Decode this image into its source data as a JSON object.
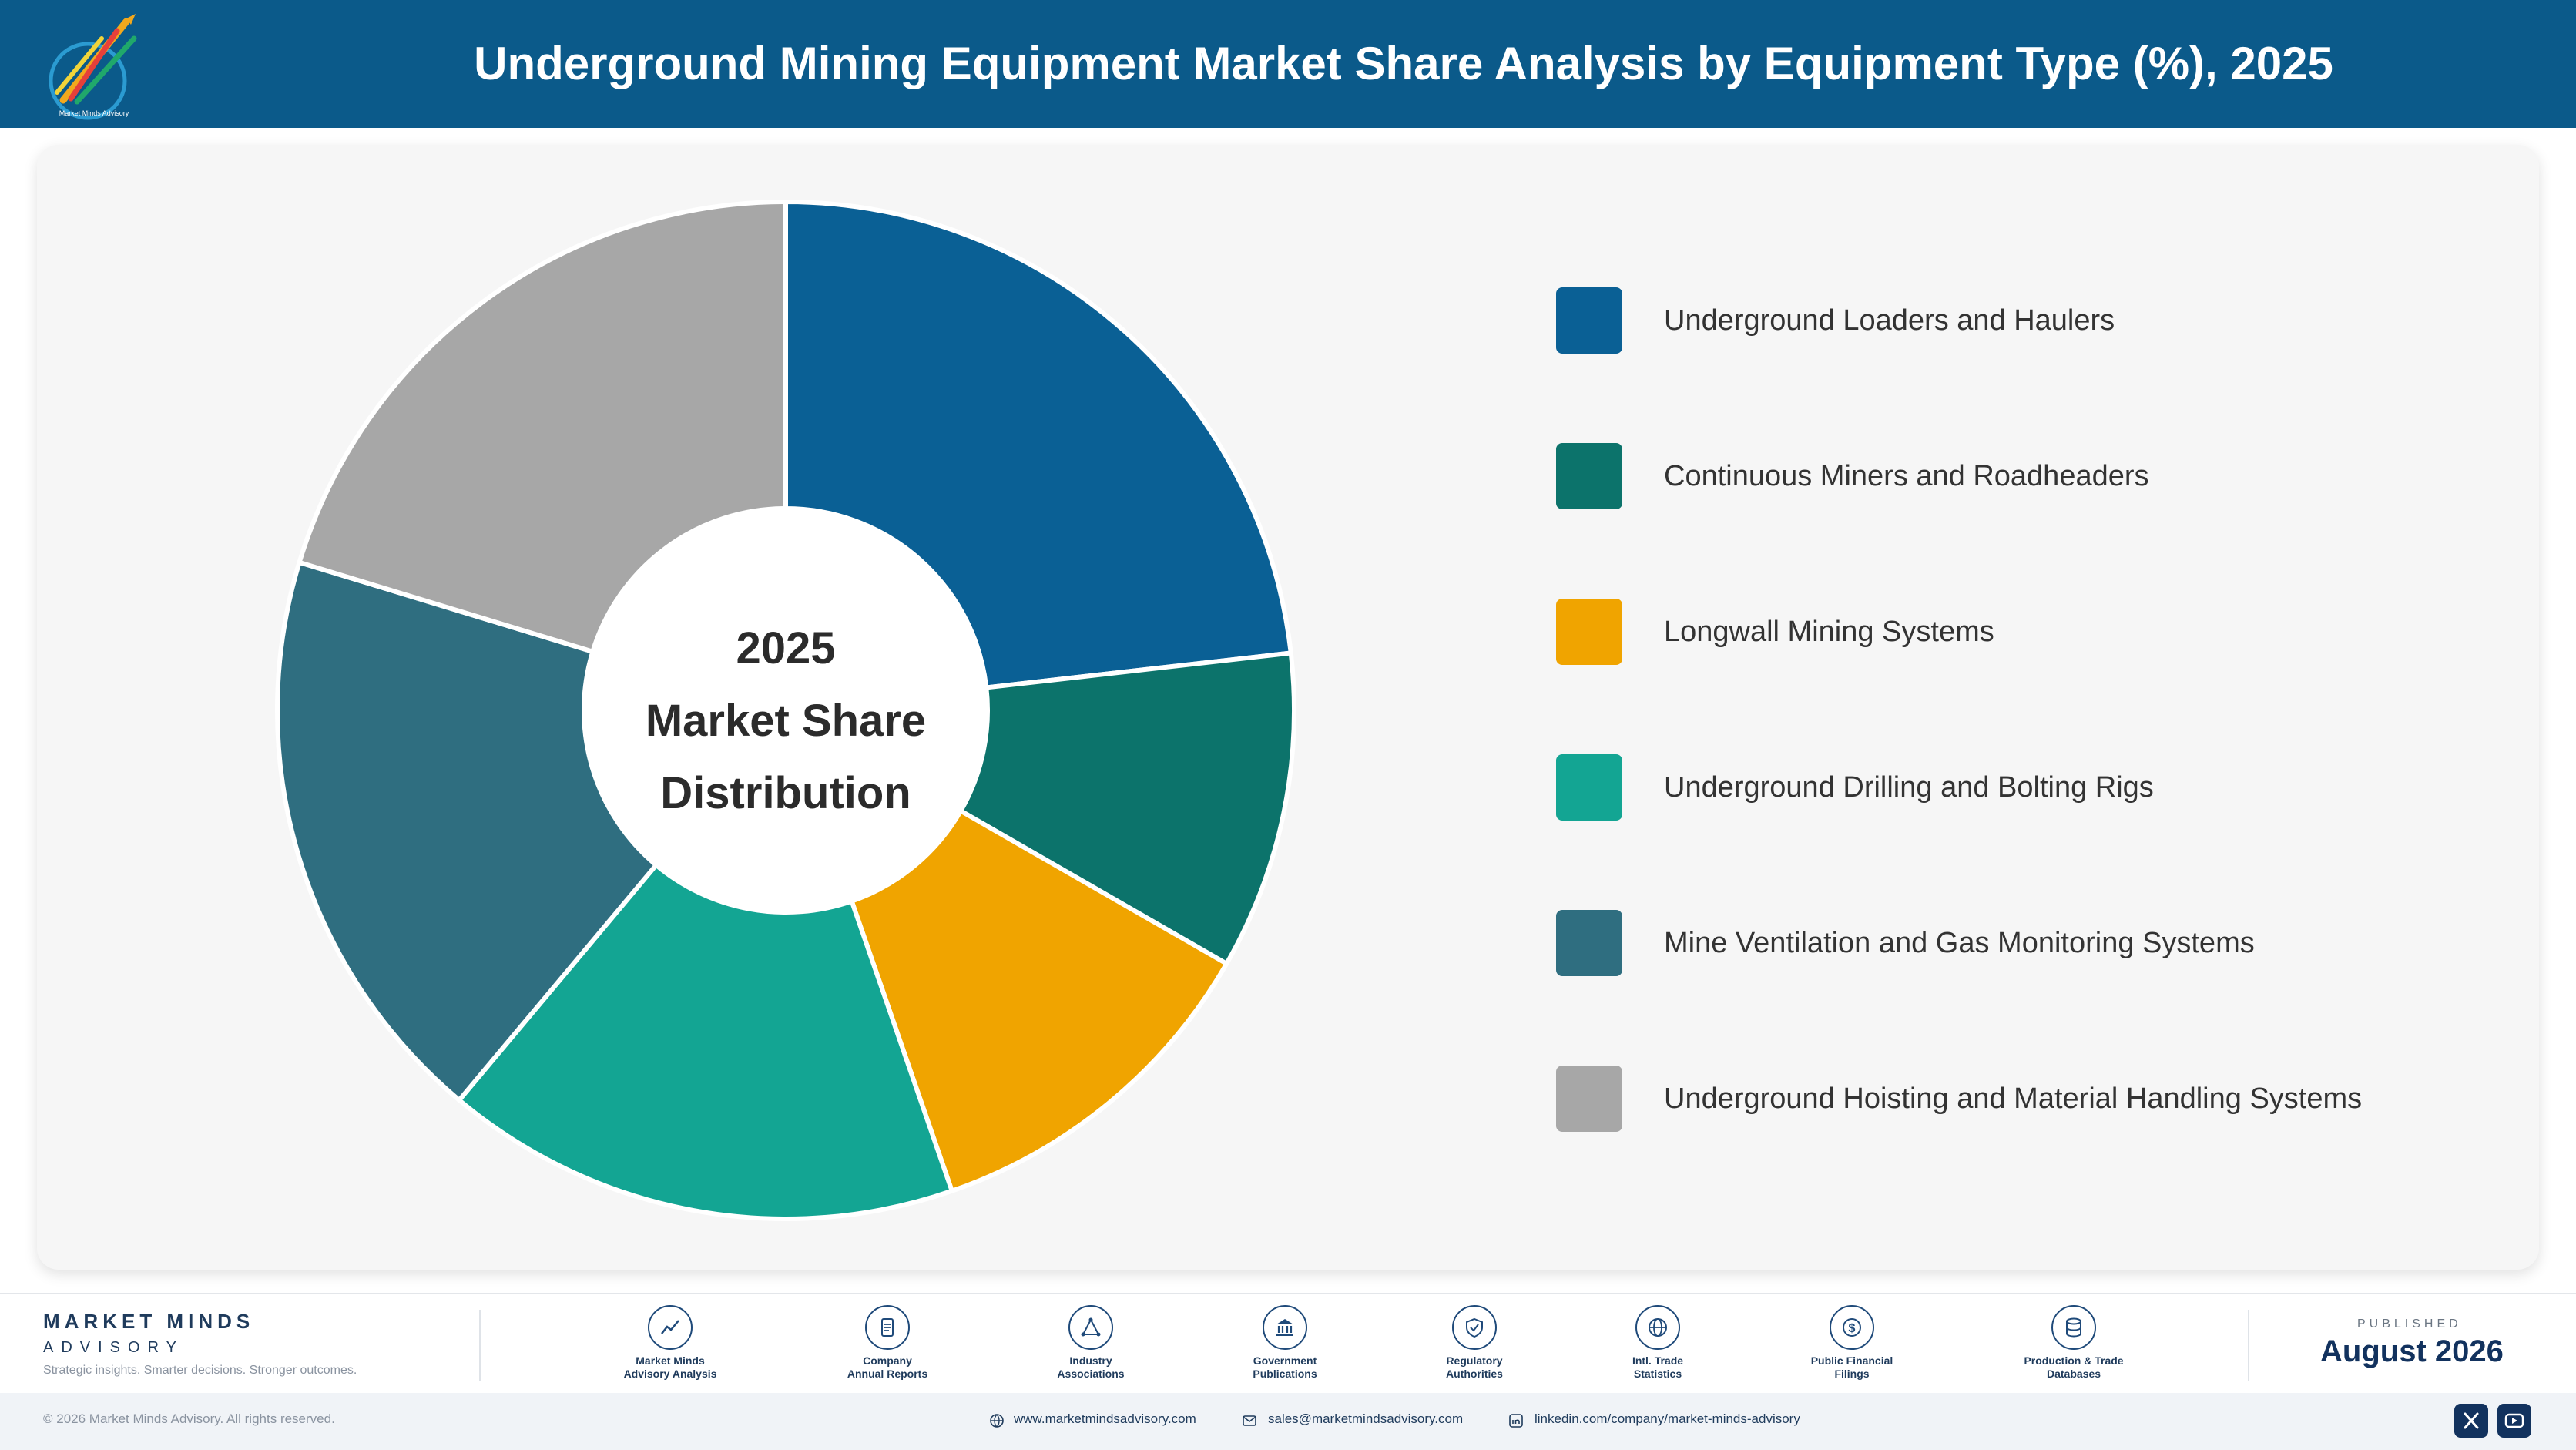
{
  "header": {
    "title": "Underground Mining Equipment Market Share Analysis by Equipment Type (%), 2025",
    "logo_tagline": "Market Minds Advisory",
    "background": "#0b5a8a"
  },
  "chart_data": {
    "type": "pie",
    "variant": "donut",
    "title": "Underground Mining Equipment Market Share Analysis by Equipment Type (%), 2025",
    "center_text": [
      "2025",
      "Market Share",
      "Distribution"
    ],
    "legend_position": "right",
    "slices": [
      {
        "label": "Underground Loaders and Haulers",
        "value": 23.2,
        "color": "#0a6095"
      },
      {
        "label": "Continuous Miners and Roadheaders",
        "value": 10.1,
        "color": "#0c736b"
      },
      {
        "label": "Longwall Mining Systems",
        "value": 11.4,
        "color": "#f0a400"
      },
      {
        "label": "Underground Drilling and Bolting Rigs",
        "value": 16.4,
        "color": "#13a593"
      },
      {
        "label": "Mine Ventilation and Gas Monitoring Systems",
        "value": 18.6,
        "color": "#2f6e80"
      },
      {
        "label": "Underground Hoisting and Material Handling Systems",
        "value": 20.3,
        "color": "#a7a7a7"
      }
    ]
  },
  "footer": {
    "brand_name": "MARKET MINDS",
    "brand_sub": "ADVISORY",
    "brand_tagline": "Strategic insights. Smarter decisions. Stronger outcomes.",
    "sources": [
      {
        "icon": "line-chart-icon",
        "line1": "Market Minds",
        "line2": "Advisory Analysis"
      },
      {
        "icon": "document-icon",
        "line1": "Company",
        "line2": "Annual Reports"
      },
      {
        "icon": "network-icon",
        "line1": "Industry",
        "line2": "Associations"
      },
      {
        "icon": "government-building-icon",
        "line1": "Government",
        "line2": "Publications"
      },
      {
        "icon": "shield-check-icon",
        "line1": "Regulatory",
        "line2": "Authorities"
      },
      {
        "icon": "globe-icon",
        "line1": "Intl. Trade",
        "line2": "Statistics"
      },
      {
        "icon": "dollar-coin-icon",
        "line1": "Public Financial",
        "line2": "Filings"
      },
      {
        "icon": "database-icon",
        "line1": "Production & Trade",
        "line2": "Databases"
      }
    ],
    "published_label": "PUBLISHED",
    "published_date": "August 2026"
  },
  "bottom_bar": {
    "copyright": "© 2026 Market Minds Advisory. All rights reserved.",
    "website": "www.marketmindsadvisory.com",
    "email": "sales@marketmindsadvisory.com",
    "linkedin": "linkedin.com/company/market-minds-advisory",
    "social": [
      {
        "icon": "x-twitter-icon"
      },
      {
        "icon": "youtube-icon"
      }
    ]
  }
}
